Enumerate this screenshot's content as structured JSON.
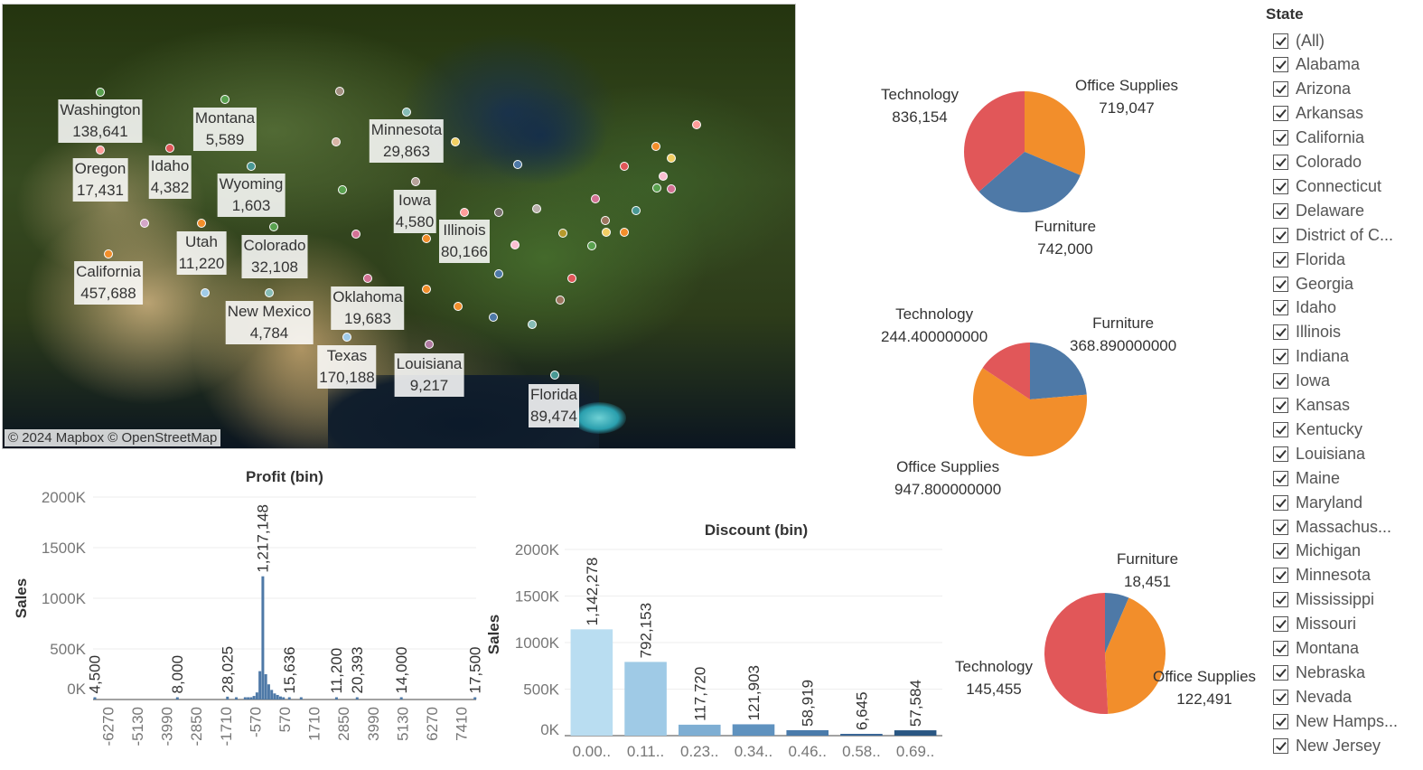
{
  "map": {
    "credit": "© 2024 Mapbox © OpenStreetMap",
    "labels": [
      {
        "state": "Washington",
        "value": "138,641"
      },
      {
        "state": "Montana",
        "value": "5,589"
      },
      {
        "state": "Minnesota",
        "value": "29,863"
      },
      {
        "state": "Oregon",
        "value": "17,431"
      },
      {
        "state": "Idaho",
        "value": "4,382"
      },
      {
        "state": "Wyoming",
        "value": "1,603"
      },
      {
        "state": "Iowa",
        "value": "4,580"
      },
      {
        "state": "Illinois",
        "value": "80,166"
      },
      {
        "state": "Utah",
        "value": "11,220"
      },
      {
        "state": "Colorado",
        "value": "32,108"
      },
      {
        "state": "California",
        "value": "457,688"
      },
      {
        "state": "Oklahoma",
        "value": "19,683"
      },
      {
        "state": "New Mexico",
        "value": "4,784"
      },
      {
        "state": "Texas",
        "value": "170,188"
      },
      {
        "state": "Louisiana",
        "value": "9,217"
      },
      {
        "state": "Florida",
        "value": "89,474"
      }
    ]
  },
  "pies": [
    {
      "slices": [
        {
          "label": "Office Supplies",
          "value": "719,047",
          "num": 719047,
          "color": "#f28e2b"
        },
        {
          "label": "Furniture",
          "value": "742,000",
          "num": 742000,
          "color": "#4e79a7"
        },
        {
          "label": "Technology",
          "value": "836,154",
          "num": 836154,
          "color": "#e15759"
        }
      ]
    },
    {
      "slices": [
        {
          "label": "Furniture",
          "value": "368.890000000",
          "num": 368.89,
          "color": "#4e79a7"
        },
        {
          "label": "Office Supplies",
          "value": "947.800000000",
          "num": 947.8,
          "color": "#f28e2b"
        },
        {
          "label": "Technology",
          "value": "244.400000000",
          "num": 244.4,
          "color": "#e15759"
        }
      ]
    },
    {
      "slices": [
        {
          "label": "Furniture",
          "value": "18,451",
          "num": 18451,
          "color": "#4e79a7"
        },
        {
          "label": "Office Supplies",
          "value": "122,491",
          "num": 122491,
          "color": "#f28e2b"
        },
        {
          "label": "Technology",
          "value": "145,455",
          "num": 145455,
          "color": "#e15759"
        }
      ]
    }
  ],
  "filter": {
    "title": "State",
    "items": [
      "(All)",
      "Alabama",
      "Arizona",
      "Arkansas",
      "California",
      "Colorado",
      "Connecticut",
      "Delaware",
      "District of C...",
      "Florida",
      "Georgia",
      "Idaho",
      "Illinois",
      "Indiana",
      "Iowa",
      "Kansas",
      "Kentucky",
      "Louisiana",
      "Maine",
      "Maryland",
      "Massachus...",
      "Michigan",
      "Minnesota",
      "Mississippi",
      "Missouri",
      "Montana",
      "Nebraska",
      "Nevada",
      "New Hamps...",
      "New Jersey"
    ]
  },
  "chart_data": [
    {
      "type": "bar",
      "title": "Profit (bin)",
      "ylabel": "Sales",
      "ylim": [
        0,
        2000000
      ],
      "yticks": [
        "0K",
        "500K",
        "1000K",
        "1500K",
        "2000K"
      ],
      "xticks": [
        "-6270",
        "-5130",
        "-3990",
        "-2850",
        "-1710",
        "-570",
        "570",
        "1710",
        "2850",
        "3990",
        "5130",
        "6270",
        "7410"
      ],
      "x_range": [
        -6840,
        7980
      ],
      "bin_width": 114,
      "bars": [
        {
          "x": -6840,
          "value": 4500,
          "label": "4,500"
        },
        {
          "x": -3648,
          "value": 8000,
          "label": "8,000"
        },
        {
          "x": -1710,
          "value": 28025,
          "label": "28,025"
        },
        {
          "x": -1368,
          "value": 5000
        },
        {
          "x": -1026,
          "value": 8000
        },
        {
          "x": -912,
          "value": 12000
        },
        {
          "x": -798,
          "value": 18000
        },
        {
          "x": -684,
          "value": 35000
        },
        {
          "x": -570,
          "value": 70000
        },
        {
          "x": -456,
          "value": 280000
        },
        {
          "x": -342,
          "value": 1217148,
          "label": "1,217,148"
        },
        {
          "x": -228,
          "value": 250000
        },
        {
          "x": -114,
          "value": 150000
        },
        {
          "x": 0,
          "value": 95000
        },
        {
          "x": 114,
          "value": 60000
        },
        {
          "x": 228,
          "value": 45000
        },
        {
          "x": 342,
          "value": 30000
        },
        {
          "x": 456,
          "value": 22000
        },
        {
          "x": 684,
          "value": 15636,
          "label": "15,636"
        },
        {
          "x": 1140,
          "value": 9000
        },
        {
          "x": 2508,
          "value": 11200,
          "label": "11,200"
        },
        {
          "x": 3306,
          "value": 20393,
          "label": "20,393"
        },
        {
          "x": 5016,
          "value": 14000,
          "label": "14,000"
        },
        {
          "x": 7866,
          "value": 17500,
          "label": "17,500"
        }
      ]
    },
    {
      "type": "bar",
      "title": "Discount (bin)",
      "ylabel": "Sales",
      "ylim": [
        0,
        2000000
      ],
      "yticks": [
        "0K",
        "500K",
        "1000K",
        "1500K",
        "2000K"
      ],
      "categories": [
        "0.00..",
        "0.11..",
        "0.23..",
        "0.34..",
        "0.46..",
        "0.58..",
        "0.69.."
      ],
      "values": [
        1142278,
        792153,
        117720,
        121903,
        58919,
        6645,
        57584
      ],
      "labels": [
        "1,142,278",
        "792,153",
        "117,720",
        "121,903",
        "58,919",
        "6,645",
        "57,584"
      ],
      "colors": [
        "#b9ddf1",
        "#9fcae6",
        "#7eaed3",
        "#5f92bf",
        "#4a7bab",
        "#3a6696",
        "#2a5783"
      ]
    },
    {
      "type": "pie",
      "slices": [
        {
          "label": "Office Supplies",
          "value": 719047
        },
        {
          "label": "Furniture",
          "value": 742000
        },
        {
          "label": "Technology",
          "value": 836154
        }
      ]
    },
    {
      "type": "pie",
      "slices": [
        {
          "label": "Furniture",
          "value": 368.89
        },
        {
          "label": "Office Supplies",
          "value": 947.8
        },
        {
          "label": "Technology",
          "value": 244.4
        }
      ]
    },
    {
      "type": "pie",
      "slices": [
        {
          "label": "Furniture",
          "value": 18451
        },
        {
          "label": "Office Supplies",
          "value": 122491
        },
        {
          "label": "Technology",
          "value": 145455
        }
      ]
    }
  ]
}
